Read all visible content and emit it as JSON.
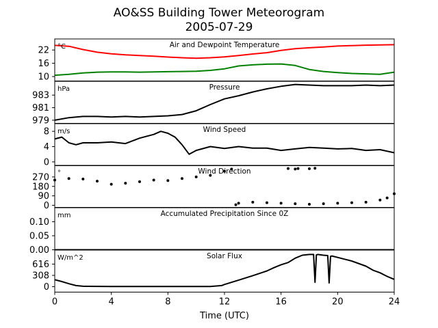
{
  "chart_data": {
    "title": "AO&SS Building Tower Meteorogram",
    "subtitle": "2005-07-29",
    "xlabel": "Time (UTC)",
    "x_ticks": [
      0,
      4,
      8,
      12,
      16,
      20,
      24
    ],
    "xlim": [
      0,
      24
    ],
    "panels": [
      {
        "type": "line",
        "title": "Air and Dewpoint Temperature",
        "unit": "°C",
        "ylim": [
          8,
          27
        ],
        "yticks": [
          10,
          16,
          22
        ],
        "series": [
          {
            "color": "#ff0000",
            "x": [
              0,
              1,
              2,
              3,
              4,
              5,
              6,
              7,
              8,
              9,
              10,
              11,
              12,
              13,
              14,
              15,
              16,
              17,
              18,
              19,
              20,
              21,
              22,
              23,
              24
            ],
            "y": [
              24.1,
              23.7,
              22.2,
              21.0,
              20.3,
              19.8,
              19.5,
              19.2,
              18.8,
              18.5,
              18.3,
              18.5,
              18.9,
              19.5,
              20.2,
              20.8,
              21.8,
              22.6,
              23.0,
              23.4,
              23.8,
              24.0,
              24.2,
              24.3,
              24.4
            ]
          },
          {
            "color": "#008000",
            "x": [
              0,
              1,
              2,
              3,
              4,
              5,
              6,
              7,
              8,
              9,
              10,
              11,
              12,
              13,
              14,
              15,
              16,
              17,
              18,
              19,
              20,
              21,
              22,
              23,
              24
            ],
            "y": [
              10.6,
              11.0,
              11.6,
              12.0,
              12.1,
              12.1,
              12.0,
              12.1,
              12.2,
              12.3,
              12.4,
              12.8,
              13.5,
              14.8,
              15.3,
              15.6,
              15.7,
              15.0,
              13.2,
              12.3,
              11.8,
              11.4,
              11.2,
              11.0,
              12.0
            ]
          }
        ]
      },
      {
        "type": "line",
        "title": "Pressure",
        "unit": "hPa",
        "ylim": [
          978.5,
          985.2
        ],
        "yticks": [
          979,
          981,
          983
        ],
        "series": [
          {
            "color": "#000000",
            "x": [
              0,
              1,
              2,
              3,
              4,
              5,
              6,
              7,
              8,
              9,
              10,
              11,
              12,
              13,
              14,
              15,
              16,
              17,
              18,
              19,
              20,
              21,
              22,
              23,
              24
            ],
            "y": [
              979.0,
              979.4,
              979.6,
              979.6,
              979.5,
              979.6,
              979.5,
              979.6,
              979.7,
              979.9,
              980.5,
              981.5,
              982.4,
              982.9,
              983.5,
              984.0,
              984.4,
              984.7,
              984.6,
              984.5,
              984.5,
              984.5,
              984.6,
              984.5,
              984.6
            ]
          }
        ]
      },
      {
        "type": "line",
        "title": "Wind Speed",
        "unit": "m/s",
        "ylim": [
          -1,
          10
        ],
        "yticks": [
          0,
          4,
          8
        ],
        "series": [
          {
            "color": "#000000",
            "x": [
              0,
              0.5,
              1,
              1.5,
              2,
              3,
              4,
              5,
              6,
              7,
              7.5,
              8,
              8.5,
              9,
              9.5,
              10,
              11,
              12,
              13,
              14,
              15,
              16,
              17,
              18,
              19,
              20,
              21,
              22,
              23,
              24
            ],
            "y": [
              6,
              6.5,
              5,
              4.5,
              5,
              5,
              5.2,
              4.8,
              6.2,
              7.2,
              8,
              7.5,
              6.5,
              4.5,
              2,
              3,
              4,
              3.5,
              4,
              3.6,
              3.6,
              3,
              3.4,
              3.8,
              3.6,
              3.4,
              3.5,
              3,
              3.2,
              2.4
            ]
          }
        ]
      },
      {
        "type": "scatter",
        "title": "Wind Direction",
        "unit": "°",
        "ylim": [
          -20,
          380
        ],
        "yticks": [
          0,
          90,
          180,
          270
        ],
        "series": [
          {
            "color": "#000000",
            "x": [
              0,
              1,
              2,
              3,
              4,
              5,
              6,
              7,
              8,
              9,
              10,
              11,
              12,
              12.5
            ],
            "y": [
              240,
              255,
              250,
              230,
              200,
              210,
              225,
              240,
              235,
              255,
              270,
              285,
              325,
              345
            ]
          },
          {
            "color": "#000000",
            "x": [
              12.8,
              13,
              14,
              15,
              16,
              17,
              18,
              19,
              20,
              21,
              22,
              23,
              23.5,
              24
            ],
            "y": [
              5,
              20,
              30,
              25,
              20,
              15,
              10,
              15,
              20,
              25,
              30,
              50,
              70,
              110
            ]
          },
          {
            "color": "#000000",
            "x": [
              16.5,
              17,
              17.2,
              18,
              18.4
            ],
            "y": [
              350,
              345,
              350,
              348,
              352
            ]
          }
        ]
      },
      {
        "type": "line",
        "title": "Accumulated Precipitation Since 0Z",
        "unit": "mm",
        "ylim": [
          0,
          0.15
        ],
        "yticks": [
          0.0,
          0.05,
          0.1
        ],
        "series": [
          {
            "color": "#000000",
            "x": [
              0,
              24
            ],
            "y": [
              0,
              0
            ]
          }
        ]
      },
      {
        "type": "line",
        "title": "Solar Flux",
        "unit": "W/m^2",
        "ylim": [
          -150,
          1000
        ],
        "yticks": [
          0,
          308,
          616
        ],
        "series": [
          {
            "color": "#000000",
            "x": [
              0,
              0.5,
              1,
              1.5,
              2,
              4,
              6,
              8,
              10,
              11,
              11.8,
              12,
              13,
              14,
              15,
              15.5,
              16,
              16.5,
              17,
              17.5,
              18,
              18.3,
              18.4,
              18.5,
              18.6,
              19,
              19.3,
              19.4,
              19.5,
              19.6,
              20,
              21,
              22,
              22.5,
              23,
              23.5,
              24
            ],
            "y": [
              190,
              140,
              80,
              30,
              10,
              5,
              5,
              5,
              5,
              5,
              30,
              60,
              180,
              300,
              430,
              520,
              600,
              660,
              780,
              860,
              880,
              880,
              120,
              870,
              880,
              860,
              850,
              100,
              830,
              840,
              800,
              700,
              560,
              450,
              380,
              280,
              200
            ]
          }
        ]
      }
    ]
  }
}
